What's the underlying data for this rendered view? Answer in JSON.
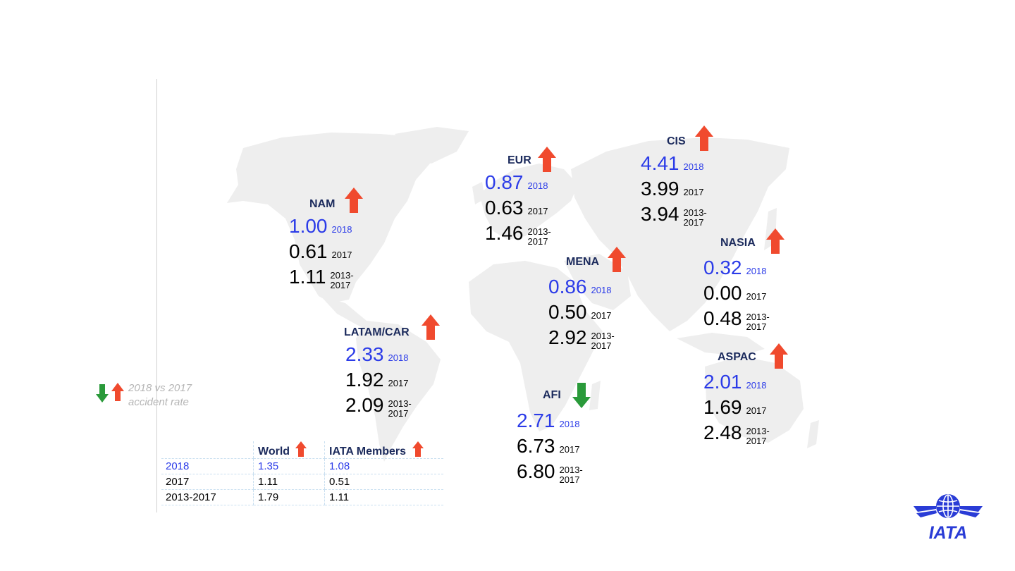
{
  "regions": [
    {
      "id": "nam",
      "name": "NAM",
      "trend": "up",
      "v2018": "1.00",
      "l2018": "2018",
      "v2017": "0.61",
      "l2017": "2017",
      "vavg": "1.11",
      "lavg1": "2013-",
      "lavg2": "2017"
    },
    {
      "id": "eur",
      "name": "EUR",
      "trend": "up",
      "v2018": "0.87",
      "l2018": "2018",
      "v2017": "0.63",
      "l2017": "2017",
      "vavg": "1.46",
      "lavg1": "2013-",
      "lavg2": "2017"
    },
    {
      "id": "cis",
      "name": "CIS",
      "trend": "up",
      "v2018": "4.41",
      "l2018": "2018",
      "v2017": "3.99",
      "l2017": "2017",
      "vavg": "3.94",
      "lavg1": "2013-",
      "lavg2": "2017"
    },
    {
      "id": "mena",
      "name": "MENA",
      "trend": "up",
      "v2018": "0.86",
      "l2018": "2018",
      "v2017": "0.50",
      "l2017": "2017",
      "vavg": "2.92",
      "lavg1": "2013-",
      "lavg2": "2017"
    },
    {
      "id": "nasia",
      "name": "NASIA",
      "trend": "up",
      "v2018": "0.32",
      "l2018": "2018",
      "v2017": "0.00",
      "l2017": "2017",
      "vavg": "0.48",
      "lavg1": "2013-",
      "lavg2": "2017"
    },
    {
      "id": "latam",
      "name": "LATAM/CAR",
      "trend": "up",
      "v2018": "2.33",
      "l2018": "2018",
      "v2017": "1.92",
      "l2017": "2017",
      "vavg": "2.09",
      "lavg1": "2013-",
      "lavg2": "2017"
    },
    {
      "id": "afi",
      "name": "AFI",
      "trend": "down",
      "v2018": "2.71",
      "l2018": "2018",
      "v2017": "6.73",
      "l2017": "2017",
      "vavg": "6.80",
      "lavg1": "2013-",
      "lavg2": "2017"
    },
    {
      "id": "aspac",
      "name": "ASPAC",
      "trend": "up",
      "v2018": "2.01",
      "l2018": "2018",
      "v2017": "1.69",
      "l2017": "2017",
      "vavg": "2.48",
      "lavg1": "2013-",
      "lavg2": "2017"
    }
  ],
  "legend": {
    "line1": "2018 vs 2017",
    "line2": "accident rate"
  },
  "summary": {
    "col_world": "World",
    "col_members": "IATA Members",
    "world_trend": "up",
    "members_trend": "up",
    "rows": [
      {
        "label": "2018",
        "world": "1.35",
        "members": "1.08"
      },
      {
        "label": "2017",
        "world": "1.11",
        "members": "0.51"
      },
      {
        "label": "2013-2017",
        "world": "1.79",
        "members": "1.11"
      }
    ]
  },
  "logo": {
    "text": "IATA"
  },
  "colors": {
    "up": "#f04a2e",
    "down": "#2a9a3a",
    "blue": "#2b3be8",
    "map": "#eeeeee",
    "navy": "#1b2a5c"
  }
}
